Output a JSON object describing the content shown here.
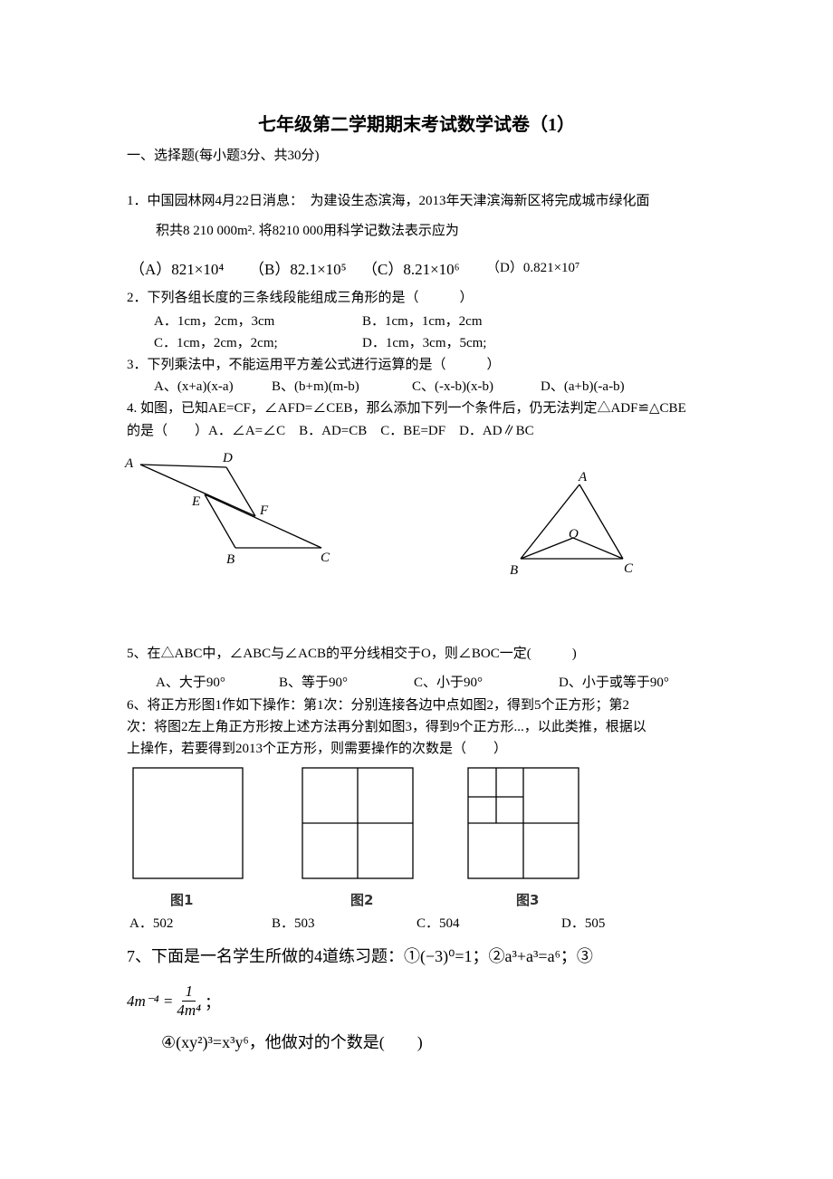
{
  "title": "七年级第二学期期末考试数学试卷（1）",
  "section": "一、选择题(每小题3分、共30分)",
  "q1": {
    "lines": [
      "1．中国园林网4月22日消息：  为建设生态滨海，2013年天津滨海新区将完成城市绿化面",
      "积共8 210 000m². 将8210 000用科学记数法表示应为"
    ],
    "options": [
      "（A）821×10⁴",
      "（B）82.1×10⁵",
      "（C）8.21×10⁶",
      "（D）0.821×10⁷"
    ]
  },
  "q2": {
    "lines": [
      "2．下列各组长度的三条线段能组成三角形的是（　　　）"
    ],
    "options": [
      "A．1cm，2cm，3cm",
      "B．1cm，1cm，2cm",
      "C．1cm，2cm，2cm;",
      "D．1cm，3cm，5cm;"
    ]
  },
  "q3": {
    "lines": [
      "3．下列乘法中，不能运用平方差公式进行运算的是（　　　）"
    ],
    "options": [
      "A、(x+a)(x-a)",
      "B、(b+m)(m-b)",
      "C、(-x-b)(x-b)",
      "D、(a+b)(-a-b)"
    ]
  },
  "q4": {
    "lines": [
      "4. 如图，已知AE=CF，∠AFD=∠CEB，那么添加下列一个条件后，仍无法判定△ADF≌△CBE",
      "的是（　　）A．∠A=∠C　B．AD=CB　C．BE=DF　D．AD∥BC"
    ]
  },
  "figure1": {
    "labels": [
      "A",
      "D",
      "E",
      "F",
      "B",
      "C"
    ]
  },
  "figure2": {
    "labels": [
      "A",
      "O",
      "B",
      "C"
    ]
  },
  "q5": {
    "lines": [
      "5、在△ABC中，∠ABC与∠ACB的平分线相交于O，则∠BOC一定(　　　)"
    ],
    "options": [
      "A、大于90°",
      "B、等于90°",
      "C、小于90°",
      "D、小于或等于90°"
    ]
  },
  "q6": {
    "lines": [
      "6、将正方形图1作如下操作：第1次：分别连接各边中点如图2，得到5个正方形；第2",
      "次：将图2左上角正方形按上述方法再分割如图3，得到9个正方形...，以此类推，根据以",
      "上操作，若要得到2013个正方形，则需要操作的次数是（　　）"
    ],
    "captions": [
      "图1",
      "图2",
      "图3"
    ],
    "options": [
      "A．502",
      "B．503",
      "C．504",
      "D．505"
    ]
  },
  "q7": {
    "lines": [
      "7、下面是一名学生所做的4道练习题：①(−3)⁰=1；②a³+a³=a⁶；③",
      "④(xy²)³=x³y⁶，他做对的个数是(　　)"
    ],
    "formula": {
      "left": "4m⁻⁴ =",
      "numerator": "1",
      "denominator": "4m⁴",
      "end": "；"
    }
  }
}
